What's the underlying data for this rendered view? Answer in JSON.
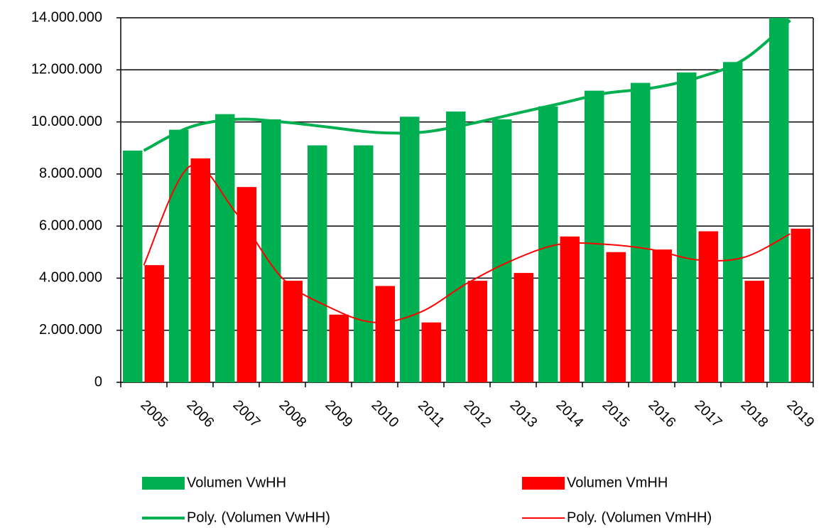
{
  "chart_data": {
    "type": "bar",
    "categories": [
      "2005",
      "2006",
      "2007",
      "2008",
      "2009",
      "2010",
      "2011",
      "2012",
      "2013",
      "2014",
      "2015",
      "2016",
      "2017",
      "2018",
      "2019"
    ],
    "series": [
      {
        "name": "Volumen VwHH",
        "type": "bar",
        "color": "#00b050",
        "values": [
          8900000,
          9700000,
          10300000,
          10100000,
          9100000,
          9100000,
          10200000,
          10400000,
          10100000,
          10600000,
          11200000,
          11500000,
          11900000,
          12300000,
          14000000
        ]
      },
      {
        "name": "Volumen VmHH",
        "type": "bar",
        "color": "#ff0000",
        "values": [
          4500000,
          8600000,
          7500000,
          3900000,
          2600000,
          3700000,
          2300000,
          3900000,
          4200000,
          5600000,
          5000000,
          5100000,
          5800000,
          3900000,
          5900000
        ]
      },
      {
        "name": "Poly. (Volumen VwHH)",
        "type": "line",
        "color": "#00b050",
        "values": [
          8900000,
          9800000,
          10100000,
          10000000,
          9800000,
          9600000,
          9600000,
          9900000,
          10300000,
          10700000,
          11100000,
          11300000,
          11700000,
          12400000,
          13900000
        ]
      },
      {
        "name": "Poly. (Volumen VmHH)",
        "type": "line",
        "color": "#ff0000",
        "values": [
          4500000,
          8300000,
          6500000,
          4000000,
          2900000,
          2300000,
          2700000,
          3800000,
          4700000,
          5300000,
          5300000,
          5100000,
          4700000,
          4800000,
          5700000
        ]
      }
    ],
    "ylim": [
      0,
      14000000
    ],
    "yticks": [
      0,
      {
        "value": 2000000,
        "label": "2.000.000"
      },
      {
        "value": 4000000,
        "label": "4.000.000"
      },
      {
        "value": 6000000,
        "label": "6.000.000"
      },
      {
        "value": 8000000,
        "label": "8.000.000"
      },
      {
        "value": 10000000,
        "label": "10.000.000"
      },
      {
        "value": 12000000,
        "label": "12.000.000"
      },
      {
        "value": 14000000,
        "label": "14.000.000"
      }
    ],
    "grid": true
  }
}
